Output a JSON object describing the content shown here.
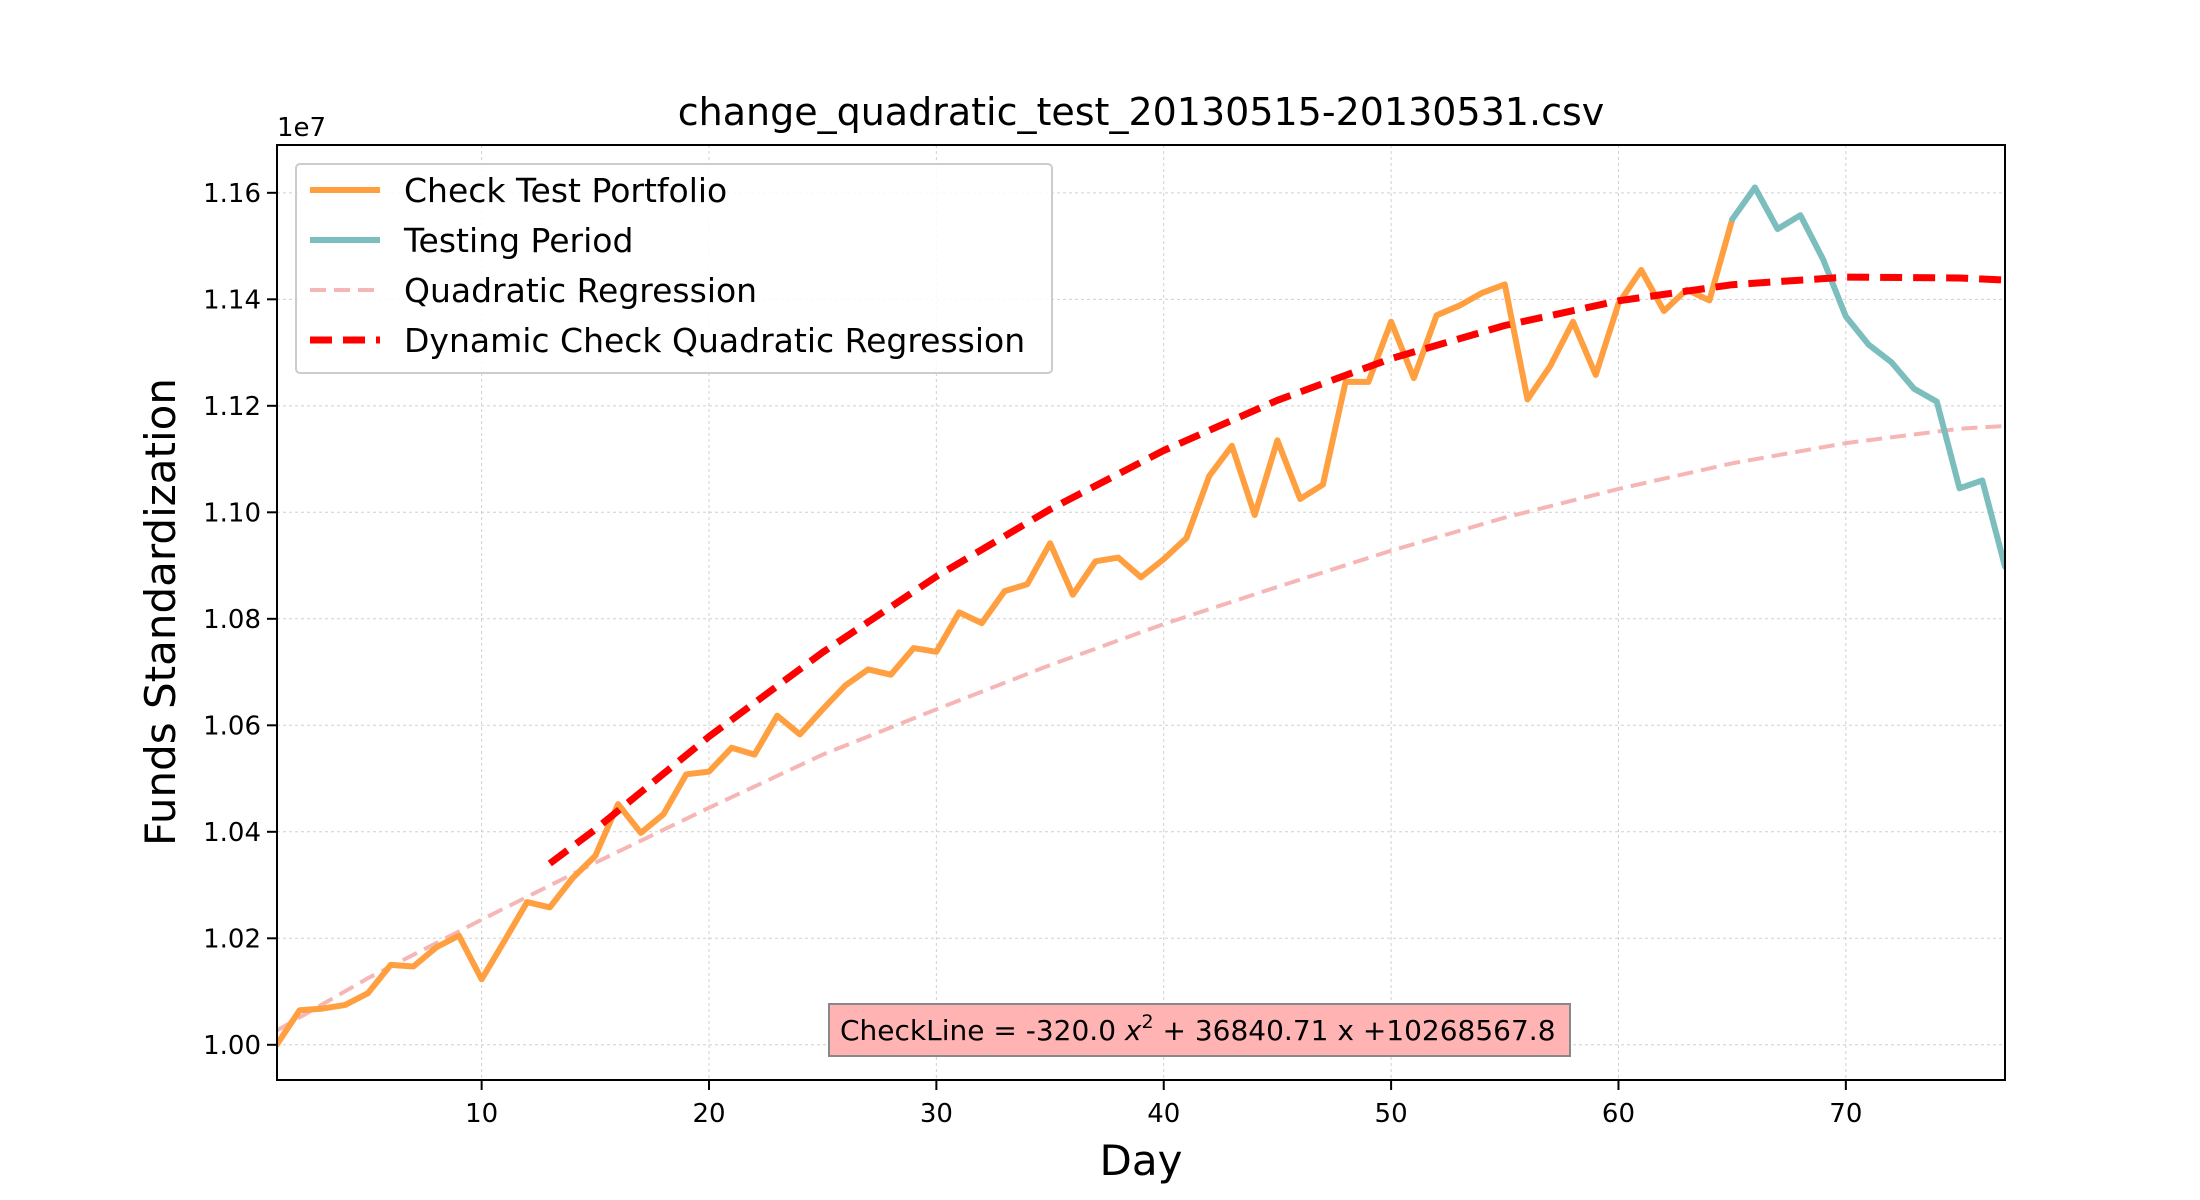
{
  "chart_data": {
    "type": "line",
    "title": "change_quadratic_test_20130515-20130531.csv",
    "xlabel": "Day",
    "ylabel": "Funds Standardization",
    "y_offset_label": "1e7",
    "xlim": [
      1,
      77
    ],
    "ylim": [
      0.99339,
      1.16898
    ],
    "xticks": [
      10,
      20,
      30,
      40,
      50,
      60,
      70
    ],
    "xtick_labels": [
      "10",
      "20",
      "30",
      "40",
      "50",
      "60",
      "70"
    ],
    "yticks": [
      1.0,
      1.02,
      1.04,
      1.06,
      1.08,
      1.1,
      1.12,
      1.14,
      1.16
    ],
    "ytick_labels": [
      "1.00",
      "1.02",
      "1.04",
      "1.06",
      "1.08",
      "1.10",
      "1.12",
      "1.14",
      "1.16"
    ],
    "grid": true,
    "legend_position": "top-left",
    "series": [
      {
        "name": "Check Test Portfolio",
        "style": "solid",
        "color": "#FF9F40",
        "x": [
          1,
          2,
          3,
          4,
          5,
          6,
          7,
          8,
          9,
          10,
          11,
          12,
          13,
          14,
          15,
          16,
          17,
          18,
          19,
          20,
          21,
          22,
          23,
          24,
          25,
          26,
          27,
          28,
          29,
          30,
          31,
          32,
          33,
          34,
          35,
          36,
          37,
          38,
          39,
          40,
          41,
          42,
          43,
          44,
          45,
          46,
          47,
          48,
          49,
          50,
          51,
          52,
          53,
          54,
          55,
          56,
          57,
          58,
          59,
          60,
          61,
          62,
          63,
          64,
          65
        ],
        "y": [
          1.0001,
          1.0065,
          1.0068,
          1.0075,
          1.0097,
          1.015,
          1.0147,
          1.0183,
          1.0205,
          1.0123,
          1.0195,
          1.0268,
          1.0258,
          1.0313,
          1.0355,
          1.0452,
          1.0398,
          1.0433,
          1.0508,
          1.0513,
          1.0558,
          1.0545,
          1.0618,
          1.0583,
          1.063,
          1.0675,
          1.0705,
          1.0695,
          1.0745,
          1.0738,
          1.0812,
          1.0792,
          1.0852,
          1.0865,
          1.0942,
          1.0845,
          1.0908,
          1.0915,
          1.0878,
          1.0912,
          1.0952,
          1.1068,
          1.1125,
          1.0995,
          1.1135,
          1.1025,
          1.1052,
          1.1245,
          1.1245,
          1.1358,
          1.1252,
          1.137,
          1.1388,
          1.1412,
          1.1428,
          1.1212,
          1.1275,
          1.1358,
          1.1258,
          1.1392,
          1.1455,
          1.1378,
          1.1418,
          1.1398,
          1.155
        ]
      },
      {
        "name": "Testing Period",
        "style": "solid",
        "color": "#7CBDBE",
        "x": [
          65,
          66,
          67,
          68,
          69,
          70,
          71,
          72,
          73,
          74,
          75,
          76,
          77
        ],
        "y": [
          1.155,
          1.161,
          1.1532,
          1.1558,
          1.1475,
          1.1368,
          1.1315,
          1.1282,
          1.1232,
          1.1208,
          1.1045,
          1.106,
          1.0898
        ]
      },
      {
        "name": "Quadratic Regression",
        "style": "dashed",
        "color": "#F7B6B6",
        "x": [
          1,
          5,
          10,
          15,
          20,
          25,
          30,
          35,
          40,
          45,
          50,
          55,
          60,
          65,
          70,
          75,
          77
        ],
        "y": [
          1.0027,
          1.0125,
          1.0235,
          1.0342,
          1.0445,
          1.0545,
          1.063,
          1.0713,
          1.079,
          1.086,
          1.0928,
          1.099,
          1.1044,
          1.1092,
          1.113,
          1.1157,
          1.1162
        ]
      },
      {
        "name": "Dynamic Check Quadratic Regression",
        "style": "dashed",
        "color": "#FF0000",
        "x": [
          13,
          15,
          20,
          25,
          30,
          35,
          40,
          45,
          50,
          55,
          60,
          65,
          70,
          75,
          77
        ],
        "y": [
          1.03405,
          1.04045,
          1.05788,
          1.07371,
          1.08794,
          1.10057,
          1.1116,
          1.12103,
          1.12886,
          1.13509,
          1.13972,
          1.14275,
          1.14418,
          1.14401,
          1.1436
        ]
      }
    ],
    "annotation": {
      "text_prefix": "CheckLine = -320.0 ",
      "text_var": "x",
      "text_exp": "2",
      "text_suffix": " + 36840.71 x +10268567.8",
      "box_color": "#FFB3B3"
    }
  }
}
